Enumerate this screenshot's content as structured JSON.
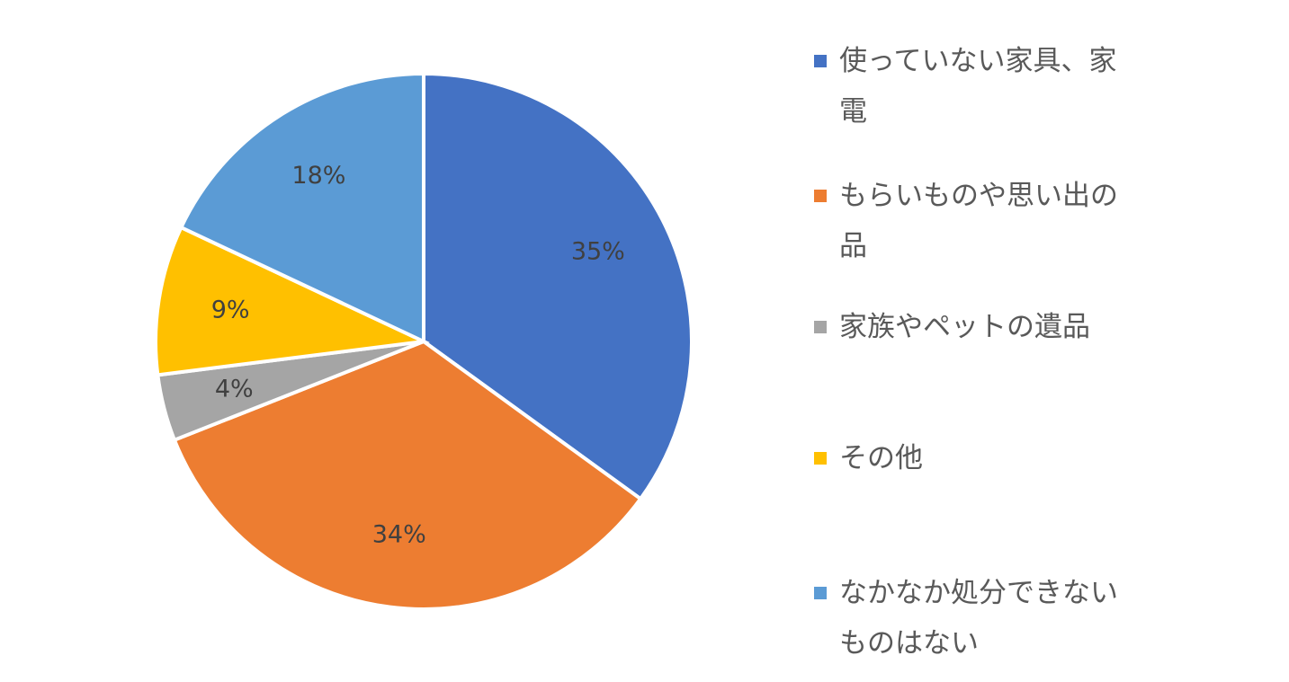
{
  "chart_data": {
    "type": "pie",
    "title": "",
    "start_angle_deg": 0,
    "direction": "clockwise",
    "legend_position": "right",
    "slices": [
      {
        "label": "使っていない家具、家電",
        "value": 35,
        "value_label": "35%",
        "color": "#4472C4"
      },
      {
        "label": "もらいものや思い出の品",
        "value": 34,
        "value_label": "34%",
        "color": "#ED7D31"
      },
      {
        "label": "家族やペットの遺品",
        "value": 4,
        "value_label": "4%",
        "color": "#A5A5A5"
      },
      {
        "label": "その他",
        "value": 9,
        "value_label": "9%",
        "color": "#FFC000"
      },
      {
        "label": "なかなか処分できないものはない",
        "value": 18,
        "value_label": "18%",
        "color": "#5B9BD5"
      }
    ]
  }
}
